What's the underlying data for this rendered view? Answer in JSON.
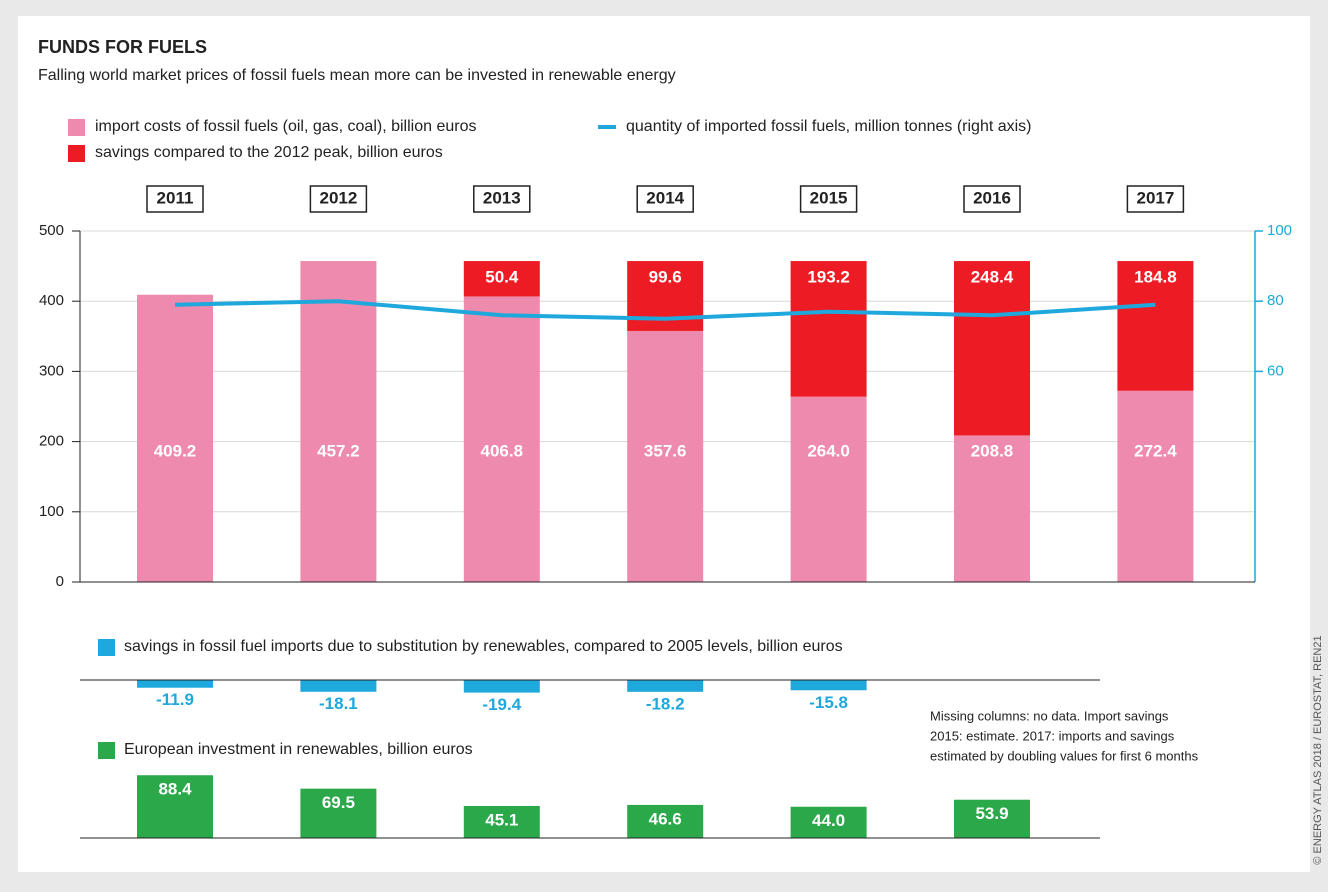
{
  "title": "FUNDS FOR FUELS",
  "subtitle": "Falling world market prices of fossil fuels mean more can be invested in renewable energy",
  "chart_data": [
    {
      "type": "bar",
      "stacked": true,
      "categories": [
        "2011",
        "2012",
        "2013",
        "2014",
        "2015",
        "2016",
        "2017"
      ],
      "series": [
        {
          "name": "import costs of fossil fuels (oil, gas, coal), billion euros",
          "color": "#ee8aad",
          "values": [
            409.2,
            457.2,
            406.8,
            357.6,
            264.0,
            208.8,
            272.4
          ],
          "value_labels": [
            "409.2",
            "457.2",
            "406.8",
            "357.6",
            "264.0",
            "208.8",
            "272.4"
          ]
        },
        {
          "name": "savings compared to the 2012 peak, billion euros",
          "color": "#ed1c24",
          "values": [
            null,
            null,
            50.4,
            99.6,
            193.2,
            248.4,
            184.8
          ]
        },
        {
          "name": "quantity of imported fossil fuels, million tonnes (right axis)",
          "color": "#1fa8dc",
          "type": "line",
          "axis": "y2",
          "values": [
            79,
            80,
            76,
            75,
            77,
            76,
            79
          ]
        }
      ],
      "ylim": [
        0,
        500
      ],
      "yticks": [
        0,
        100,
        200,
        300,
        400,
        500
      ],
      "y2lim": [
        0,
        100
      ],
      "y2ticks": [
        60,
        80,
        100
      ],
      "grid": true
    },
    {
      "type": "bar",
      "categories": [
        "2011",
        "2012",
        "2013",
        "2014",
        "2015",
        "2016",
        "2017"
      ],
      "series": [
        {
          "name": "savings in fossil fuel imports due to substitution by renewables, compared to 2005 levels, billion euros",
          "color": "#1fa8dc",
          "values": [
            -11.9,
            -18.1,
            -19.4,
            -18.2,
            -15.8,
            null,
            null
          ]
        }
      ]
    },
    {
      "type": "bar",
      "categories": [
        "2011",
        "2012",
        "2013",
        "2014",
        "2015",
        "2016",
        "2017"
      ],
      "series": [
        {
          "name": "European investment in renewables, billion euros",
          "color": "#2ba84a",
          "values": [
            88.4,
            69.5,
            45.1,
            46.6,
            44.0,
            53.9,
            null
          ],
          "value_labels": [
            "88.4",
            "69.5",
            "45.1",
            "46.6",
            "44.0",
            "53.9",
            null
          ]
        }
      ]
    }
  ],
  "note": [
    "Missing columns: no data. Import savings",
    "2015: estimate. 2017: imports and savings",
    "estimated by doubling values for first 6 months"
  ],
  "credit": "© ENERGY ATLAS 2018 / EUROSTAT, REN21"
}
